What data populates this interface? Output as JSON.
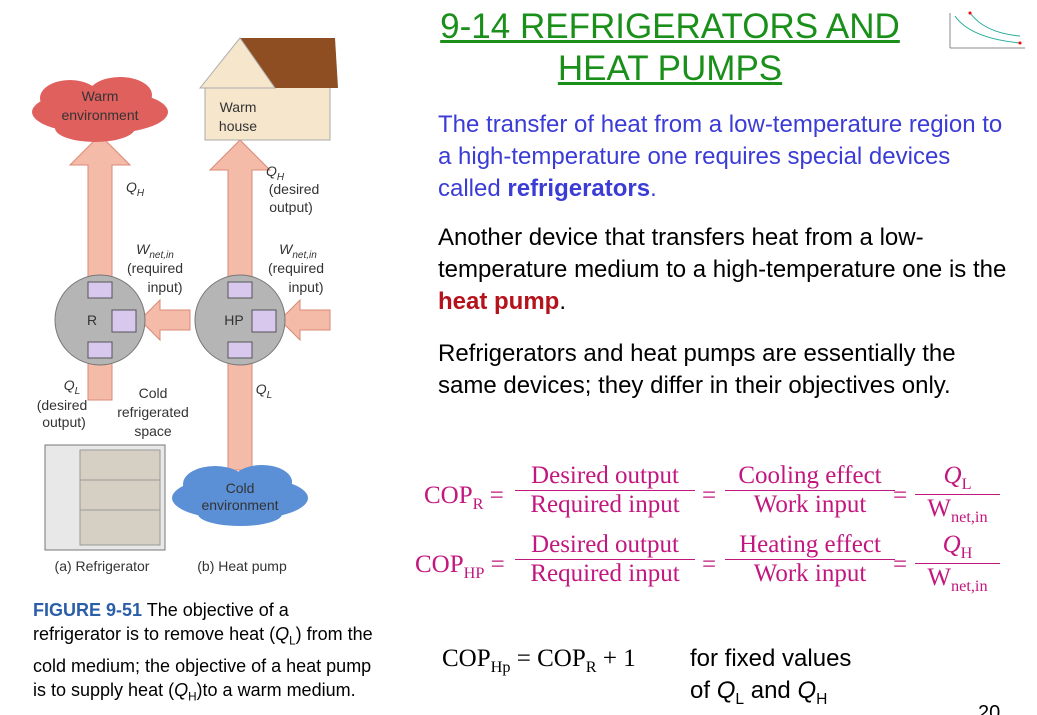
{
  "header": {
    "title_line1": "9-14 REFRIGERATORS AND",
    "title_line2": "HEAT PUMPS",
    "page_number": "20"
  },
  "figure": {
    "warm_env": [
      "Warm",
      "environment"
    ],
    "warm_house": [
      "Warm",
      "house"
    ],
    "qh_left": {
      "main": "Q",
      "sub": "H"
    },
    "qh_right": {
      "main": "Q",
      "sub": "H"
    },
    "desired_output_top": [
      "(desired",
      "output)"
    ],
    "w_left": {
      "main": "W",
      "sub": "net,in"
    },
    "w_right": {
      "main": "W",
      "sub": "net,in"
    },
    "required_left": [
      "(required",
      "input)"
    ],
    "required_right": [
      "(required",
      "input)"
    ],
    "device_r": "R",
    "device_hp": "HP",
    "ql_left": {
      "main": "Q",
      "sub": "L"
    },
    "desired_output_bottom": [
      "(desired",
      "output)"
    ],
    "cold_space": [
      "Cold",
      "refrigerated",
      "space"
    ],
    "ql_right": {
      "main": "Q",
      "sub": "L"
    },
    "cold_env": [
      "Cold",
      "environment"
    ],
    "caption_a": "(a) Refrigerator",
    "caption_b": "(b) Heat pump"
  },
  "caption": {
    "label": "FIGURE 9-51",
    "text_1": "The objective of a refrigerator is to remove heat (",
    "q_l": {
      "main": "Q",
      "sub": "L"
    },
    "text_2": ") from the cold medium; the objective of a heat pump is to supply heat (",
    "q_h": {
      "main": "Q",
      "sub": "H"
    },
    "text_3": ")to a warm medium."
  },
  "paragraphs": [
    {
      "text": "The transfer of heat from a low-temperature region to a high-temperature one requires special devices called ",
      "bold": "refrigerators",
      "end": "."
    },
    {
      "text": "Another device that transfers heat from a low-temperature medium to a high-temperature one is the ",
      "bold": "heat pump",
      "end": "."
    },
    {
      "text": "Refrigerators and heat pumps are essentially the same devices; they differ in their objectives only."
    }
  ],
  "equations": [
    {
      "lhs": {
        "main": "COP",
        "sub": "R"
      },
      "f1": [
        "Desired output",
        "Required input"
      ],
      "f2": [
        "Cooling effect",
        "Work input"
      ],
      "f3": [
        {
          "main": "Q",
          "sub": "L"
        },
        {
          "main": "W",
          "sub": "net,in"
        }
      ]
    },
    {
      "lhs": {
        "main": "COP",
        "sub": "HP"
      },
      "f1": [
        "Desired output",
        "Required input"
      ],
      "f2": [
        "Heating effect",
        "Work input"
      ],
      "f3": [
        {
          "main": "Q",
          "sub": "H"
        },
        {
          "main": "W",
          "sub": "net,in"
        }
      ]
    }
  ],
  "relation": {
    "lhs": {
      "main": "COP",
      "sub": "Hp"
    },
    "rhs": {
      "main": "COP",
      "sub": "R"
    },
    "plus": "+ 1",
    "note_1": "for fixed values",
    "note_2": "of ",
    "q_l": {
      "main": "Q",
      "sub": "L"
    },
    "and": " and ",
    "q_h": {
      "main": "Q",
      "sub": "H"
    }
  }
}
